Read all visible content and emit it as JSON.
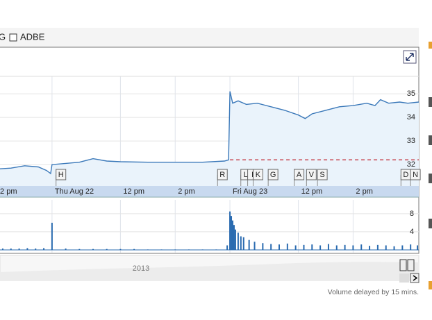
{
  "header": {
    "prev_symbol": "G",
    "symbol": "ADBE"
  },
  "chart_data": [
    {
      "type": "line",
      "x": [
        4.6,
        5.0,
        5.5,
        6.0,
        6.3,
        6.45,
        6.5,
        7.0,
        7.5,
        8.0,
        8.5,
        9,
        10,
        11,
        12,
        12.8,
        12.95,
        13.0,
        13.1,
        13.3,
        13.6,
        14.0,
        14.5,
        15,
        15.5,
        15.75,
        16,
        16.5,
        17,
        17.5,
        18,
        18.3,
        18.5,
        18.8,
        19.2,
        19.5,
        19.9
      ],
      "values": [
        31.82,
        31.85,
        31.95,
        31.9,
        31.75,
        31.62,
        32.0,
        32.05,
        32.1,
        32.25,
        32.15,
        32.12,
        32.1,
        32.1,
        32.1,
        32.15,
        32.2,
        35.1,
        34.6,
        34.7,
        34.55,
        34.6,
        34.45,
        34.3,
        34.1,
        33.95,
        34.15,
        34.3,
        34.45,
        34.5,
        34.6,
        34.5,
        34.75,
        34.6,
        34.65,
        34.6,
        34.65
      ],
      "color": "#3a78b9",
      "xlim": [
        4.6,
        19.9
      ],
      "xticks": [
        {
          "value": 4.5,
          "label": "2 pm"
        },
        {
          "value": 6.5,
          "label": "Thu Aug 22"
        },
        {
          "value": 9,
          "label": "12 pm"
        },
        {
          "value": 11,
          "label": "2 pm"
        },
        {
          "value": 13,
          "label": "Fri Aug 23"
        },
        {
          "value": 15.5,
          "label": "12 pm"
        },
        {
          "value": 17.5,
          "label": "2 pm"
        }
      ],
      "ylim": [
        31.09,
        35.74
      ],
      "yticks": [
        32,
        33,
        34,
        35
      ],
      "previous_close": 32.2,
      "flags": [
        {
          "label": "H",
          "x": 6.8
        },
        {
          "label": "R",
          "x": 12.7
        },
        {
          "label": "L",
          "x": 13.55
        },
        {
          "label": "I",
          "x": 13.8
        },
        {
          "label": "K",
          "x": 14.0
        },
        {
          "label": "G",
          "x": 14.55
        },
        {
          "label": "A",
          "x": 15.5
        },
        {
          "label": "V",
          "x": 15.95
        },
        {
          "label": "S",
          "x": 16.35
        },
        {
          "label": "D",
          "x": 19.4
        },
        {
          "label": "N",
          "x": 19.75
        }
      ]
    },
    {
      "type": "bar",
      "x": [
        4.7,
        5.0,
        5.3,
        5.6,
        5.9,
        6.2,
        6.5,
        7,
        7.5,
        8,
        8.5,
        9,
        9.5,
        10,
        10.5,
        11,
        11.5,
        12,
        12.5,
        12.9,
        13.0,
        13.05,
        13.1,
        13.15,
        13.2,
        13.3,
        13.4,
        13.5,
        13.7,
        13.9,
        14.2,
        14.5,
        14.8,
        15.1,
        15.4,
        15.7,
        16,
        16.3,
        16.6,
        16.9,
        17.2,
        17.5,
        17.8,
        18.1,
        18.4,
        18.7,
        19,
        19.3,
        19.6,
        19.85
      ],
      "values": [
        0.3,
        0.3,
        0.3,
        0.4,
        0.3,
        0.4,
        6,
        0.3,
        0.2,
        0.2,
        0.2,
        0.2,
        0.2,
        0.1,
        0.1,
        0.1,
        0.1,
        0.1,
        0.1,
        1.0,
        8.5,
        7.5,
        6.5,
        5.5,
        4.5,
        3.8,
        3,
        2.8,
        2.2,
        1.8,
        1.5,
        1.3,
        1.2,
        1.4,
        1.0,
        1.1,
        1.2,
        1.0,
        1.3,
        1.0,
        1.1,
        1.0,
        1.2,
        0.9,
        1.1,
        1.0,
        0.8,
        1.0,
        1.2,
        1.0
      ],
      "color": "#2a6bb0",
      "xlim": [
        4.6,
        19.9
      ],
      "ylim": [
        0,
        8.9
      ],
      "yticks": [
        4,
        8
      ]
    }
  ],
  "navigator": {
    "label": "2013"
  },
  "footer": "Volume delayed by 15 mins."
}
